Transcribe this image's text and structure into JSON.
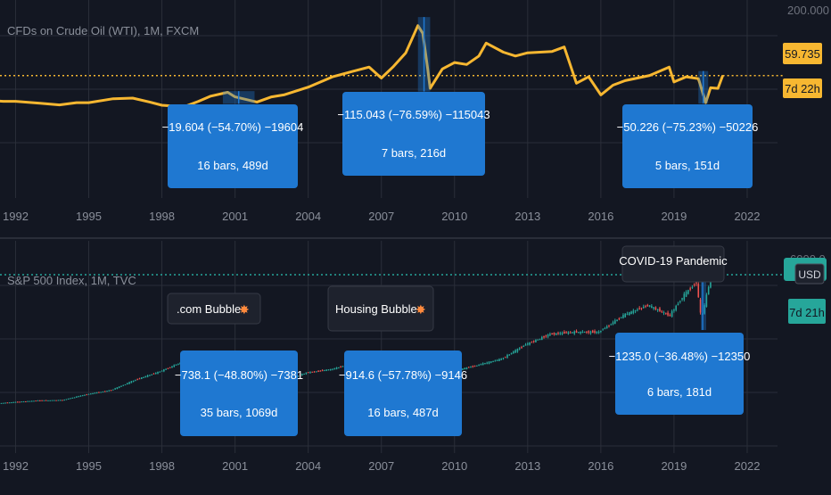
{
  "colors": {
    "background": "#131722",
    "grid": "#2a2e39",
    "oil_line": "#f7b731",
    "sp_up": "#26a69a",
    "sp_down": "#ef5350",
    "measure_box": "#1f78d1",
    "price_tag_oil": "#f7b731",
    "price_tag_sp": "#26a69a",
    "callout_bg": "#1e222d"
  },
  "top_panel": {
    "title": "CFDs on Crude Oil (WTI), 1M, FXCM",
    "axis_top_label": "200.000",
    "price_tag": "59.735",
    "countdown": "7d 22h"
  },
  "bottom_panel": {
    "title": "S&P 500 Index, 1M, TVC",
    "axis_top_label": "6000.0",
    "currency": "USD",
    "countdown": "7d 21h"
  },
  "x_axis_labels": [
    "1992",
    "1995",
    "1998",
    "2001",
    "2004",
    "2007",
    "2010",
    "2013",
    "2016",
    "2019",
    "2022"
  ],
  "measurements_oil": [
    {
      "line1": "−19.604 (−54.70%) −19604",
      "line2": "16 bars, 489d",
      "start": 2000.5,
      "end": 2001.8,
      "from": 35.8,
      "to": 16.2
    },
    {
      "line1": "−115.043 (−76.59%) −115043",
      "line2": "7 bars, 216d",
      "start": 2008.5,
      "end": 2009.0,
      "from": 150.2,
      "to": 35.2
    },
    {
      "line1": "−50.226 (−75.23%) −50226",
      "line2": "5 bars, 151d",
      "start": 2020.0,
      "end": 2020.4,
      "from": 66.8,
      "to": 16.5
    }
  ],
  "measurements_sp": [
    {
      "line1": "−738.1 (−48.80%) −7381",
      "line2": "35 bars, 1069d",
      "start": 2000.2,
      "end": 2003.2,
      "from": 1512,
      "to": 774
    },
    {
      "line1": "−914.6 (−57.78%) −9146",
      "line2": "16 bars, 487d",
      "start": 2007.8,
      "end": 2009.2,
      "from": 1583,
      "to": 668
    },
    {
      "line1": "−1235.0 (−36.48%) −12350",
      "line2": "6 bars, 181d",
      "start": 2020.1,
      "end": 2020.25,
      "from": 3385,
      "to": 2150
    }
  ],
  "annotations": [
    {
      "text": ".com Bubble"
    },
    {
      "text": "Housing Bubble"
    },
    {
      "text": "COVID-19 Pandemic"
    }
  ],
  "chart_data": [
    {
      "type": "line",
      "title": "CFDs on Crude Oil (WTI), 1M, FXCM",
      "ylim": [
        0,
        200
      ],
      "last_value": 59.735,
      "x": [
        1990.0,
        1990.8,
        1991.0,
        1991.5,
        1992.0,
        1993.0,
        1993.8,
        1994.5,
        1995.0,
        1996.0,
        1996.8,
        1997.5,
        1998.0,
        1998.9,
        1999.5,
        2000.0,
        2000.7,
        2001.0,
        2001.9,
        2002.5,
        2003.0,
        2004.0,
        2005.0,
        2005.8,
        2006.5,
        2007.0,
        2007.5,
        2008.0,
        2008.5,
        2008.7,
        2008.9,
        2009.0,
        2009.5,
        2010.0,
        2010.5,
        2011.0,
        2011.3,
        2012.0,
        2012.5,
        2013.0,
        2014.0,
        2014.5,
        2015.0,
        2015.5,
        2016.0,
        2016.5,
        2017.0,
        2018.0,
        2018.8,
        2019.0,
        2019.5,
        2020.0,
        2020.3,
        2020.5,
        2020.8,
        2021.0
      ],
      "y": [
        19,
        33,
        21,
        20,
        20,
        17,
        14.5,
        18,
        18,
        24,
        25,
        19,
        14,
        11.5,
        20,
        28,
        34,
        27,
        19,
        27,
        30,
        42,
        58,
        66,
        73,
        56,
        74,
        95,
        137,
        125,
        70,
        40,
        70,
        80,
        77,
        90,
        110,
        96,
        90,
        95,
        97,
        104,
        48,
        58,
        30,
        45,
        52,
        60,
        73,
        50,
        58,
        55,
        18,
        41,
        40,
        60
      ]
    },
    {
      "type": "line",
      "title": "S&P 500 Index, 1M, TVC",
      "ylim": [
        0,
        6000
      ],
      "x": [
        1990.0,
        1991.0,
        1992.0,
        1993.0,
        1994.0,
        1995.0,
        1996.0,
        1997.0,
        1998.0,
        1999.0,
        2000.0,
        2000.6,
        2001.0,
        2002.0,
        2002.8,
        2003.0,
        2004.0,
        2005.0,
        2006.0,
        2007.0,
        2007.8,
        2008.5,
        2009.2,
        2009.5,
        2010.0,
        2011.0,
        2012.0,
        2013.0,
        2014.0,
        2015.0,
        2016.0,
        2017.0,
        2018.0,
        2018.9,
        2019.5,
        2020.0,
        2020.2,
        2020.5,
        2021.0
      ],
      "y": [
        330,
        370,
        410,
        450,
        460,
        600,
        700,
        950,
        1150,
        1400,
        1450,
        1500,
        1250,
        1000,
        800,
        900,
        1120,
        1200,
        1350,
        1450,
        1550,
        1250,
        700,
        950,
        1150,
        1300,
        1450,
        1800,
        2050,
        2100,
        2100,
        2500,
        2750,
        2500,
        3000,
        3300,
        2400,
        3200,
        3750
      ]
    }
  ]
}
